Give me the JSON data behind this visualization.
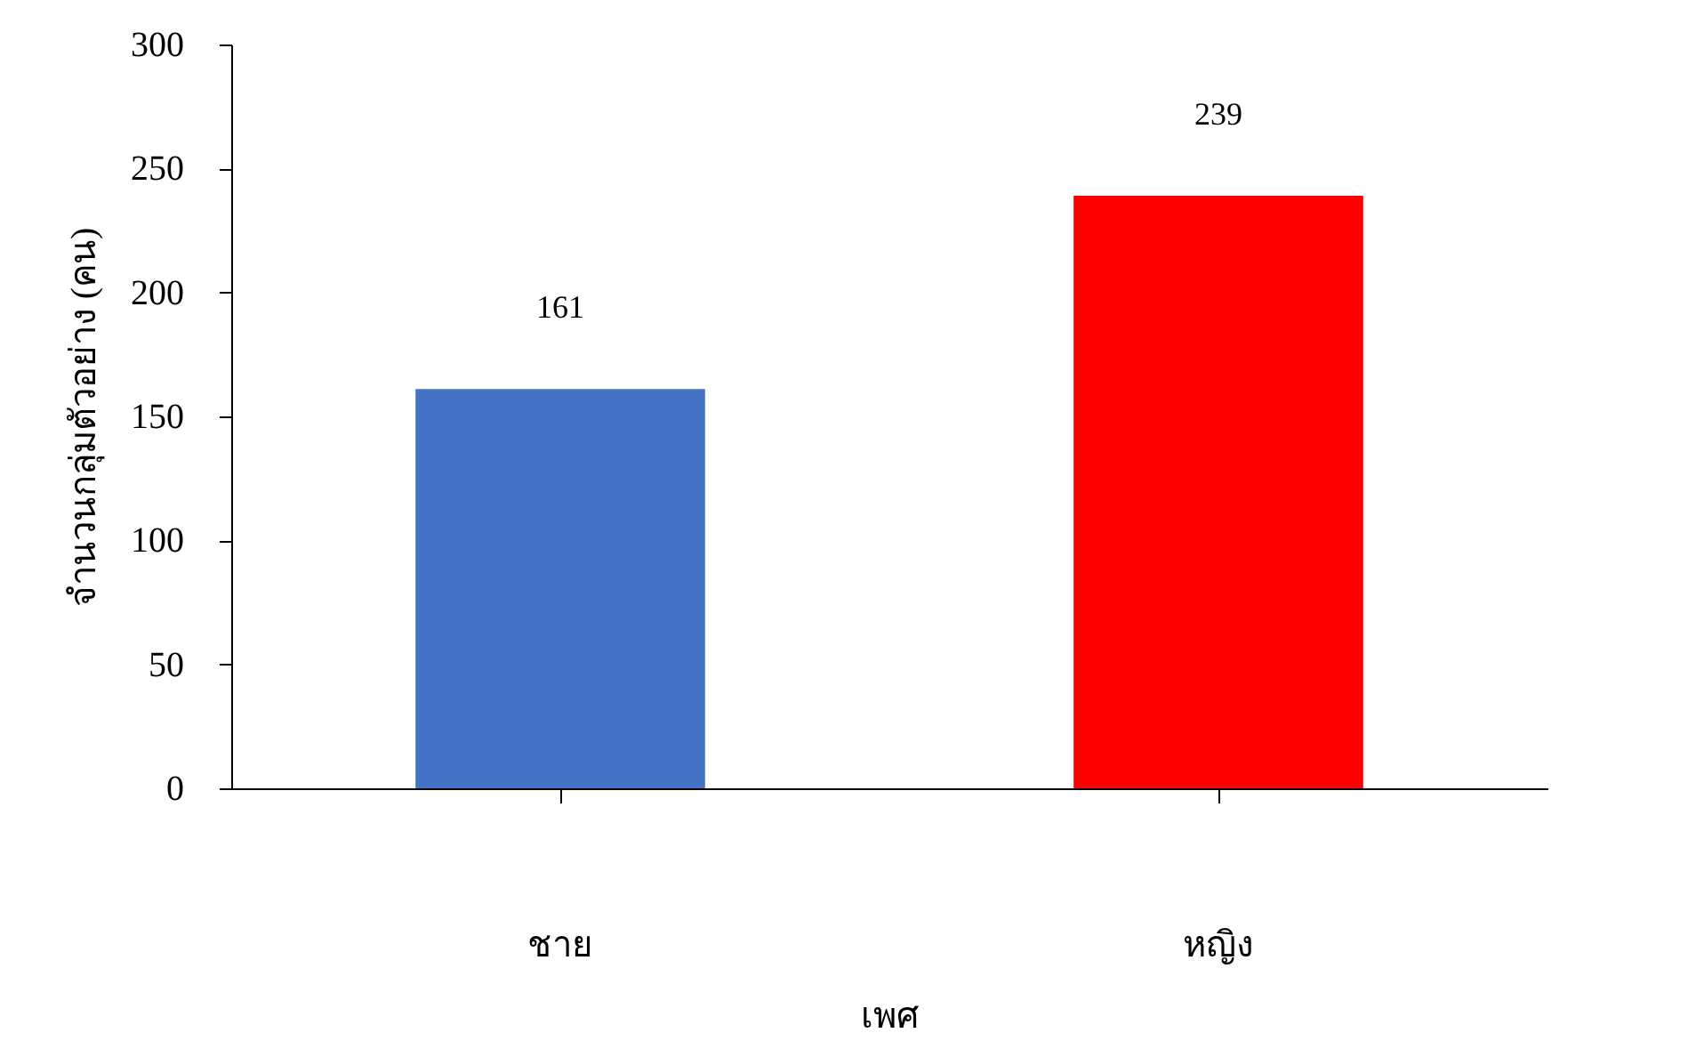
{
  "chart_data": {
    "type": "bar",
    "xlabel": "เพศ",
    "ylabel": "จำนวนกลุ่มตัวอย่าง (คน)",
    "categories": [
      "ชาย",
      "หญิง"
    ],
    "values": [
      161,
      239
    ],
    "colors": [
      "#4472c4",
      "#ff0000"
    ],
    "ylim": [
      0,
      300
    ],
    "yticks": [
      0,
      50,
      100,
      150,
      200,
      250,
      300
    ],
    "grid": false,
    "data_labels": true
  }
}
